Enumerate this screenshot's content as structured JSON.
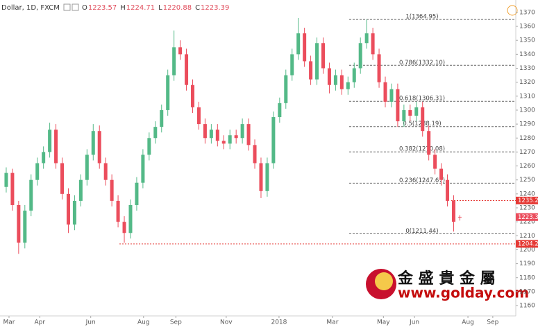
{
  "chart_data": {
    "type": "candlestick",
    "symbol": "Dollar, 1D, FXCM",
    "ohlc_keys": [
      "O",
      "H",
      "L",
      "C"
    ],
    "up_color": "#53b987",
    "down_color": "#eb4d5c",
    "open": [
      1245,
      1255,
      1232,
      1205,
      1228,
      1250,
      1262,
      1270,
      1286,
      1262,
      1240,
      1218,
      1235,
      1250,
      1268,
      1285,
      1262,
      1250,
      1235,
      1220,
      1212,
      1232,
      1248,
      1268,
      1280,
      1288,
      1300,
      1325,
      1345,
      1340,
      1318,
      1302,
      1290,
      1280,
      1286,
      1278,
      1276,
      1282,
      1280,
      1290,
      1275,
      1262,
      1242,
      1262,
      1295,
      1305,
      1325,
      1340,
      1355,
      1335,
      1322,
      1348,
      1330,
      1318,
      1325,
      1315,
      1320,
      1330,
      1348,
      1355,
      1340,
      1320,
      1306,
      1315,
      1292,
      1300,
      1296,
      1302,
      1285,
      1268,
      1258,
      1250,
      1235,
      1223.57
    ],
    "high": [
      1259,
      1258,
      1235,
      1232,
      1254,
      1266,
      1274,
      1291,
      1290,
      1266,
      1244,
      1239,
      1254,
      1272,
      1290,
      1289,
      1266,
      1254,
      1239,
      1224,
      1236,
      1252,
      1272,
      1284,
      1292,
      1304,
      1329,
      1357,
      1350,
      1344,
      1322,
      1306,
      1294,
      1290,
      1290,
      1282,
      1286,
      1286,
      1294,
      1294,
      1279,
      1266,
      1266,
      1299,
      1309,
      1329,
      1344,
      1366,
      1359,
      1339,
      1352,
      1352,
      1334,
      1329,
      1329,
      1324,
      1334,
      1352,
      1365,
      1359,
      1344,
      1324,
      1319,
      1319,
      1304,
      1304,
      1306,
      1306,
      1289,
      1272,
      1262,
      1254,
      1239,
      1224.71
    ],
    "low": [
      1241,
      1228,
      1197,
      1201,
      1224,
      1246,
      1258,
      1266,
      1258,
      1236,
      1212,
      1214,
      1231,
      1246,
      1264,
      1258,
      1246,
      1231,
      1216,
      1205,
      1208,
      1228,
      1244,
      1264,
      1276,
      1284,
      1296,
      1321,
      1336,
      1314,
      1298,
      1286,
      1276,
      1276,
      1274,
      1272,
      1272,
      1276,
      1276,
      1271,
      1258,
      1237,
      1238,
      1258,
      1291,
      1301,
      1321,
      1336,
      1331,
      1318,
      1318,
      1326,
      1312,
      1314,
      1311,
      1311,
      1316,
      1326,
      1344,
      1336,
      1316,
      1302,
      1302,
      1288,
      1288,
      1292,
      1292,
      1281,
      1264,
      1254,
      1246,
      1231,
      1213,
      1220.88
    ],
    "close": [
      1255,
      1232,
      1205,
      1228,
      1250,
      1262,
      1270,
      1286,
      1262,
      1240,
      1218,
      1235,
      1250,
      1268,
      1285,
      1262,
      1250,
      1235,
      1220,
      1212,
      1232,
      1248,
      1268,
      1280,
      1288,
      1300,
      1325,
      1345,
      1340,
      1318,
      1302,
      1290,
      1280,
      1286,
      1278,
      1276,
      1282,
      1280,
      1290,
      1275,
      1262,
      1242,
      1262,
      1295,
      1305,
      1325,
      1340,
      1355,
      1335,
      1322,
      1348,
      1330,
      1318,
      1325,
      1315,
      1320,
      1330,
      1348,
      1355,
      1340,
      1320,
      1306,
      1315,
      1292,
      1300,
      1296,
      1302,
      1285,
      1268,
      1258,
      1250,
      1235,
      1220,
      1223.39
    ],
    "xlim": [
      -1,
      82
    ],
    "xticks": [
      {
        "value": 0.45,
        "label": "Mar"
      },
      {
        "value": 5.4,
        "label": "Apr"
      },
      {
        "value": 13.6,
        "label": "Jun"
      },
      {
        "value": 22.1,
        "label": "Aug"
      },
      {
        "value": 27.3,
        "label": "Sep"
      },
      {
        "value": 35.4,
        "label": "Nov"
      },
      {
        "value": 43.9,
        "label": "2018"
      },
      {
        "value": 52.5,
        "label": "Mar"
      },
      {
        "value": 60.7,
        "label": "May"
      },
      {
        "value": 65.7,
        "label": "Jun"
      },
      {
        "value": 74.3,
        "label": "Aug"
      },
      {
        "value": 78.3,
        "label": "Sep"
      }
    ],
    "ylim": [
      1150,
      1370
    ],
    "yticks": [
      1160,
      1170,
      1180,
      1190,
      1200,
      1210,
      1220,
      1230,
      1240,
      1250,
      1260,
      1270,
      1280,
      1290,
      1300,
      1310,
      1320,
      1330,
      1340,
      1350,
      1360,
      1370
    ],
    "fib_levels": [
      {
        "value": 1364.95,
        "label": "1(1364.95)"
      },
      {
        "value": 1332.1,
        "label": "0.786(1332.10)"
      },
      {
        "value": 1306.31,
        "label": "0.618(1306.31)"
      },
      {
        "value": 1288.19,
        "label": "0.5(1288.19)"
      },
      {
        "value": 1270.08,
        "label": "0.382(1270.08)"
      },
      {
        "value": 1247.67,
        "label": "0.236(1247.67)"
      },
      {
        "value": 1211.44,
        "label": "0(1211.44)"
      }
    ],
    "price_lines": [
      1235.24,
      1204.21
    ],
    "price_line_color": "#e53935"
  },
  "logo": {
    "name": "金 盛 貴 金 屬",
    "url": "www.golday.com"
  }
}
